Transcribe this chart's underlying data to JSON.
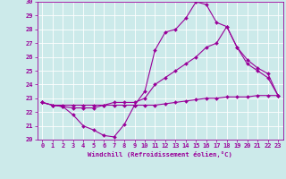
{
  "xlabel": "Windchill (Refroidissement éolien,°C)",
  "bg_color": "#cceaea",
  "grid_color": "#ffffff",
  "line_color": "#990099",
  "xlim": [
    -0.5,
    23.5
  ],
  "ylim": [
    20,
    30
  ],
  "yticks": [
    20,
    21,
    22,
    23,
    24,
    25,
    26,
    27,
    28,
    29,
    30
  ],
  "xticks": [
    0,
    1,
    2,
    3,
    4,
    5,
    6,
    7,
    8,
    9,
    10,
    11,
    12,
    13,
    14,
    15,
    16,
    17,
    18,
    19,
    20,
    21,
    22,
    23
  ],
  "line1_x": [
    0,
    1,
    2,
    3,
    4,
    5,
    6,
    7,
    8,
    9,
    10,
    11,
    12,
    13,
    14,
    15,
    16,
    17,
    18,
    19,
    20,
    21,
    22,
    23
  ],
  "line1_y": [
    22.7,
    22.5,
    22.5,
    22.5,
    22.5,
    22.5,
    22.5,
    22.5,
    22.5,
    22.5,
    22.5,
    22.5,
    22.6,
    22.7,
    22.8,
    22.9,
    23.0,
    23.0,
    23.1,
    23.1,
    23.1,
    23.2,
    23.2,
    23.2
  ],
  "line2_x": [
    0,
    1,
    2,
    3,
    4,
    5,
    6,
    7,
    8,
    9,
    10,
    11,
    12,
    13,
    14,
    15,
    16,
    17,
    18,
    19,
    20,
    21,
    22,
    23
  ],
  "line2_y": [
    22.7,
    22.5,
    22.4,
    21.8,
    21.0,
    20.7,
    20.3,
    20.2,
    21.1,
    22.5,
    23.5,
    26.5,
    27.8,
    28.0,
    28.8,
    30.0,
    29.8,
    28.5,
    28.2,
    26.7,
    25.5,
    25.0,
    24.5,
    23.2
  ],
  "line3_x": [
    0,
    1,
    2,
    3,
    4,
    5,
    6,
    7,
    8,
    9,
    10,
    11,
    12,
    13,
    14,
    15,
    16,
    17,
    18,
    19,
    20,
    21,
    22,
    23
  ],
  "line3_y": [
    22.7,
    22.5,
    22.4,
    22.3,
    22.3,
    22.3,
    22.5,
    22.7,
    22.7,
    22.7,
    23.0,
    24.0,
    24.5,
    25.0,
    25.5,
    26.0,
    26.7,
    27.0,
    28.2,
    26.7,
    25.8,
    25.2,
    24.8,
    23.2
  ]
}
